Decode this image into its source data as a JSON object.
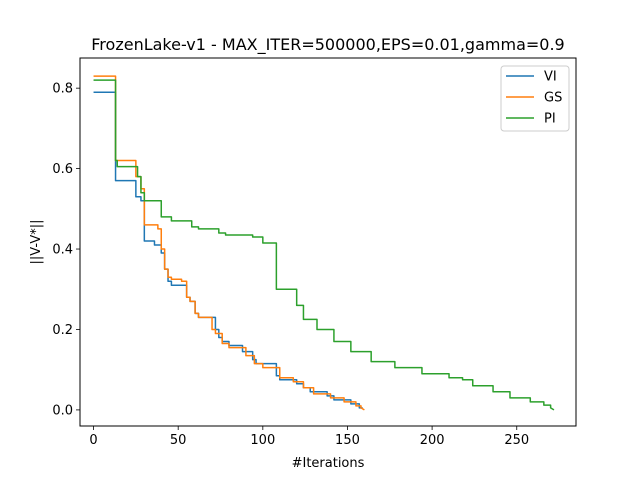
{
  "chart_data": {
    "type": "line",
    "title": "FrozenLake-v1 - MAX_ITER=500000,EPS=0.01,gamma=0.9",
    "xlabel": "#Iterations",
    "ylabel": "||V-V*||",
    "xlim": [
      -8,
      285
    ],
    "ylim": [
      -0.04,
      0.875
    ],
    "xticks": [
      0,
      50,
      100,
      150,
      200,
      250
    ],
    "yticks": [
      0.0,
      0.2,
      0.4,
      0.6,
      0.8
    ],
    "grid": false,
    "legend_position": "top-right",
    "series": [
      {
        "name": "VI",
        "color": "#1f77b4",
        "x": [
          0,
          13,
          13,
          25,
          25,
          28,
          28,
          30,
          30,
          36,
          36,
          40,
          40,
          42,
          42,
          44,
          44,
          46,
          46,
          55,
          55,
          57,
          57,
          60,
          60,
          62,
          62,
          72,
          72,
          74,
          74,
          76,
          76,
          80,
          80,
          88,
          88,
          94,
          94,
          96,
          96,
          108,
          108,
          110,
          110,
          120,
          120,
          124,
          124,
          128,
          128,
          138,
          138,
          142,
          142,
          152,
          152,
          157,
          157,
          159
        ],
        "y": [
          0.79,
          0.79,
          0.57,
          0.57,
          0.53,
          0.53,
          0.52,
          0.52,
          0.42,
          0.42,
          0.41,
          0.41,
          0.39,
          0.39,
          0.35,
          0.35,
          0.32,
          0.32,
          0.31,
          0.31,
          0.28,
          0.28,
          0.27,
          0.27,
          0.24,
          0.24,
          0.23,
          0.23,
          0.2,
          0.2,
          0.18,
          0.18,
          0.17,
          0.17,
          0.16,
          0.16,
          0.145,
          0.145,
          0.125,
          0.125,
          0.115,
          0.115,
          0.085,
          0.085,
          0.075,
          0.075,
          0.065,
          0.065,
          0.055,
          0.055,
          0.045,
          0.045,
          0.035,
          0.035,
          0.025,
          0.025,
          0.015,
          0.015,
          0.005,
          0.005
        ]
      },
      {
        "name": "GS",
        "color": "#ff7f0e",
        "x": [
          0,
          13,
          13,
          25,
          25,
          28,
          28,
          30,
          30,
          38,
          38,
          40,
          40,
          42,
          42,
          44,
          44,
          46,
          46,
          52,
          52,
          55,
          55,
          57,
          57,
          60,
          60,
          62,
          62,
          70,
          70,
          72,
          72,
          76,
          76,
          80,
          80,
          90,
          90,
          95,
          95,
          100,
          100,
          110,
          110,
          118,
          118,
          124,
          124,
          130,
          130,
          140,
          140,
          148,
          148,
          155,
          155,
          158,
          158,
          160
        ],
        "y": [
          0.83,
          0.83,
          0.62,
          0.62,
          0.58,
          0.58,
          0.55,
          0.55,
          0.46,
          0.46,
          0.45,
          0.45,
          0.4,
          0.4,
          0.35,
          0.35,
          0.33,
          0.33,
          0.325,
          0.325,
          0.32,
          0.32,
          0.28,
          0.28,
          0.27,
          0.27,
          0.24,
          0.24,
          0.23,
          0.23,
          0.2,
          0.2,
          0.19,
          0.19,
          0.165,
          0.165,
          0.155,
          0.155,
          0.135,
          0.135,
          0.115,
          0.115,
          0.105,
          0.105,
          0.08,
          0.08,
          0.07,
          0.07,
          0.055,
          0.055,
          0.04,
          0.04,
          0.03,
          0.03,
          0.02,
          0.02,
          0.01,
          0.01,
          0.005,
          0.0
        ]
      },
      {
        "name": "PI",
        "color": "#2ca02c",
        "x": [
          0,
          13,
          13,
          14,
          14,
          26,
          26,
          28,
          28,
          30,
          30,
          40,
          40,
          46,
          46,
          58,
          58,
          62,
          62,
          74,
          74,
          78,
          78,
          94,
          94,
          100,
          100,
          108,
          108,
          120,
          120,
          124,
          124,
          132,
          132,
          142,
          142,
          152,
          152,
          164,
          164,
          178,
          178,
          194,
          194,
          210,
          210,
          218,
          218,
          224,
          224,
          236,
          236,
          246,
          246,
          258,
          258,
          266,
          266,
          270,
          270,
          272
        ],
        "y": [
          0.82,
          0.82,
          0.62,
          0.62,
          0.605,
          0.605,
          0.58,
          0.58,
          0.54,
          0.54,
          0.52,
          0.52,
          0.48,
          0.48,
          0.47,
          0.47,
          0.455,
          0.455,
          0.45,
          0.45,
          0.44,
          0.44,
          0.435,
          0.435,
          0.43,
          0.43,
          0.415,
          0.415,
          0.3,
          0.3,
          0.26,
          0.26,
          0.225,
          0.225,
          0.2,
          0.2,
          0.17,
          0.17,
          0.145,
          0.145,
          0.12,
          0.12,
          0.105,
          0.105,
          0.09,
          0.09,
          0.08,
          0.08,
          0.075,
          0.075,
          0.06,
          0.06,
          0.045,
          0.045,
          0.03,
          0.03,
          0.02,
          0.02,
          0.012,
          0.012,
          0.005,
          0.0
        ]
      }
    ]
  }
}
